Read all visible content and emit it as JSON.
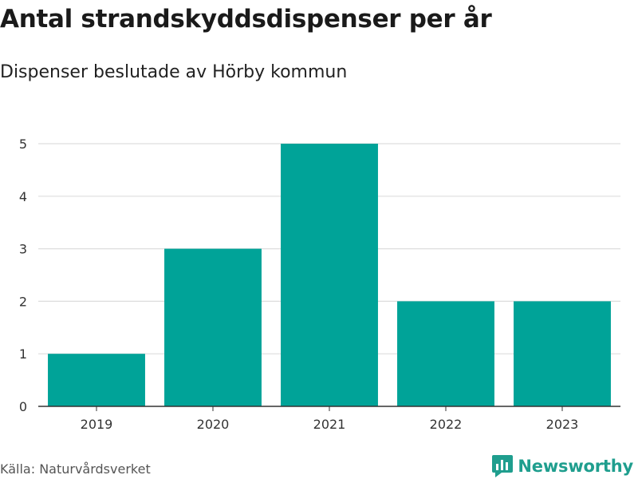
{
  "header": {
    "title": "Antal strandskyddsdispenser per år",
    "subtitle": "Dispenser beslutade av Hörby kommun"
  },
  "footer": {
    "source": "Källa: Naturvårdsverket",
    "brand": "Newsworthy"
  },
  "colors": {
    "bar": "#00a398",
    "grid": "#dddddd",
    "axis": "#333333",
    "brand": "#1f9e8e"
  },
  "chart_data": {
    "type": "bar",
    "title": "Antal strandskyddsdispenser per år",
    "subtitle": "Dispenser beslutade av Hörby kommun",
    "xlabel": "",
    "ylabel": "",
    "categories": [
      "2019",
      "2020",
      "2021",
      "2022",
      "2023"
    ],
    "values": [
      1,
      3,
      5,
      2,
      2
    ],
    "ylim": [
      0,
      5
    ],
    "yticks": [
      "0",
      "1",
      "2",
      "3",
      "4",
      "5"
    ],
    "grid": true,
    "legend": "none"
  }
}
